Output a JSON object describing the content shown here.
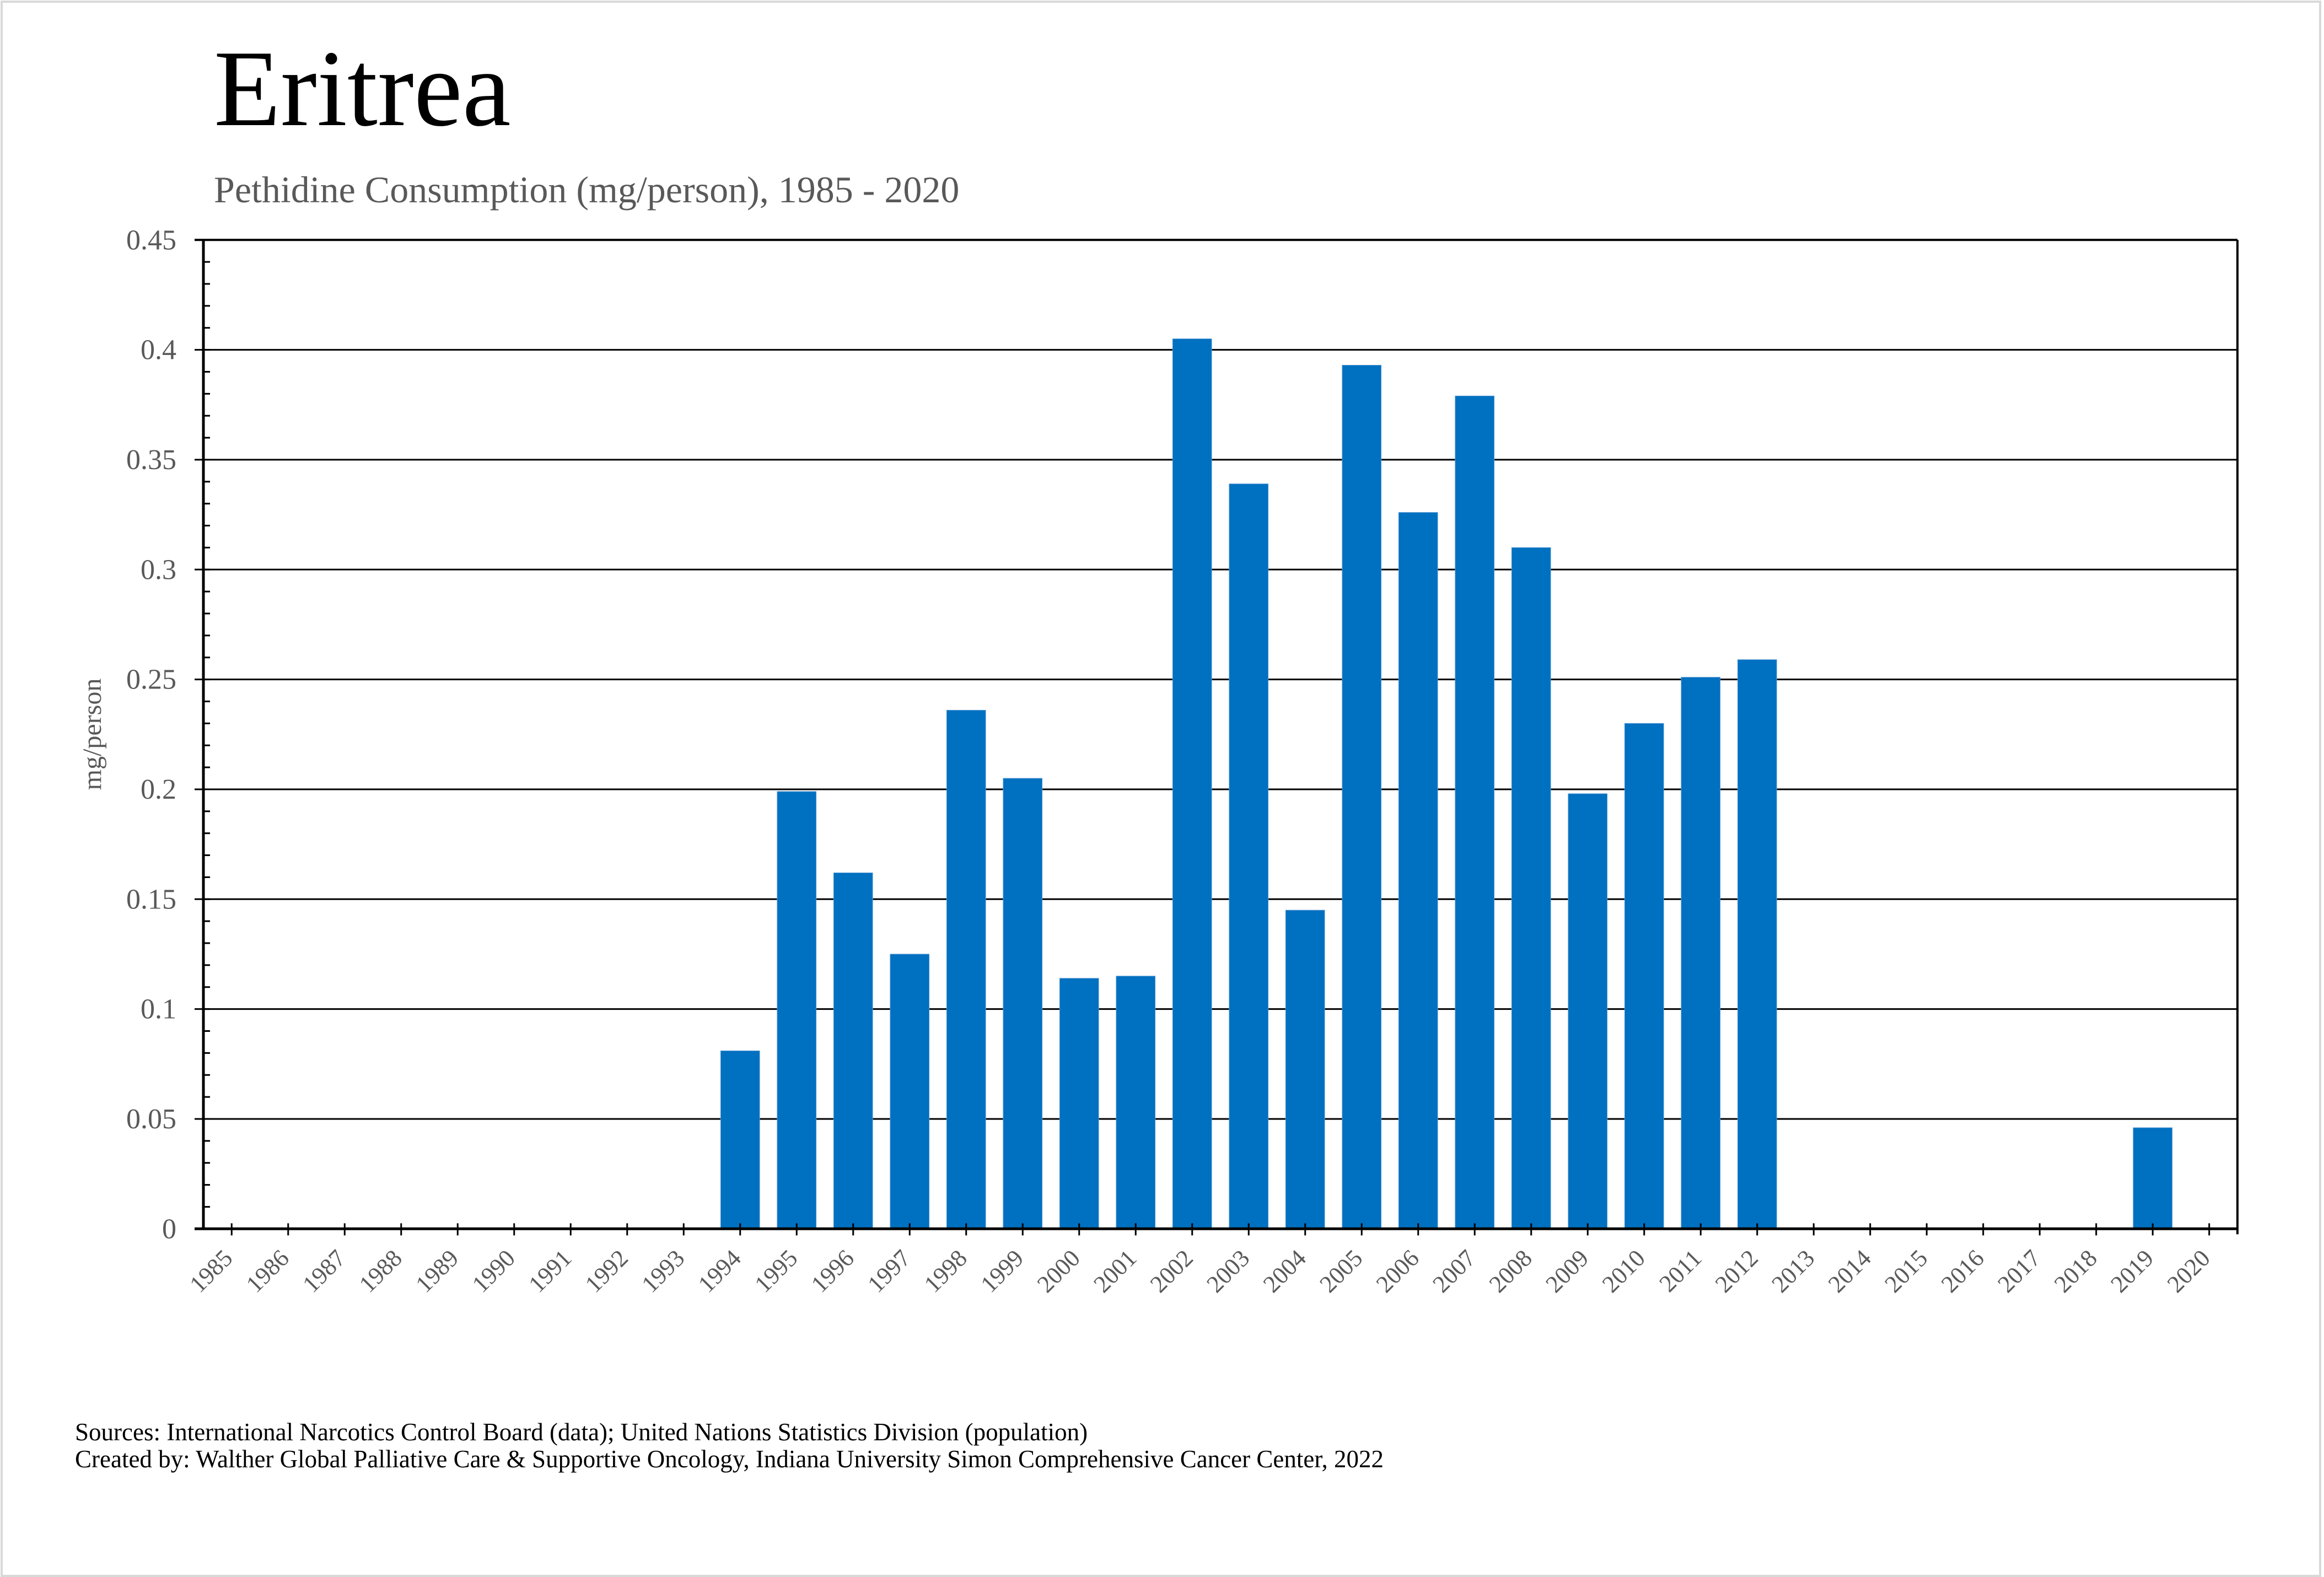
{
  "header": {
    "title": "Eritrea",
    "subtitle": "Pethidine Consumption (mg/person), 1985 - 2020"
  },
  "footer": {
    "sources": "Sources: International Narcotics Control Board (data); United Nations Statistics Division (population)",
    "created_by": "Created by: Walther Global Palliative Care & Supportive Oncology, Indiana University Simon Comprehensive Cancer Center, 2022"
  },
  "colors": {
    "bar": "#0070C0",
    "axis": "#000000",
    "gridline": "#000000",
    "tick_label": "#595959",
    "border": "#d9d9d9"
  },
  "chart_data": {
    "type": "bar",
    "title": "Eritrea",
    "subtitle": "Pethidine Consumption (mg/person), 1985 - 2020",
    "xlabel": "",
    "ylabel": "mg/person",
    "ylim": [
      0,
      0.45
    ],
    "yticks": [
      "0",
      "0.05",
      "0.1",
      "0.15",
      "0.2",
      "0.25",
      "0.3",
      "0.35",
      "0.4",
      "0.45"
    ],
    "ytick_values": [
      0,
      0.05,
      0.1,
      0.15,
      0.2,
      0.25,
      0.3,
      0.35,
      0.4,
      0.45
    ],
    "minor_ticks_per_major": 5,
    "grid": true,
    "legend": "none",
    "categories": [
      "1985",
      "1986",
      "1987",
      "1988",
      "1989",
      "1990",
      "1991",
      "1992",
      "1993",
      "1994",
      "1995",
      "1996",
      "1997",
      "1998",
      "1999",
      "2000",
      "2001",
      "2002",
      "2003",
      "2004",
      "2005",
      "2006",
      "2007",
      "2008",
      "2009",
      "2010",
      "2011",
      "2012",
      "2013",
      "2014",
      "2015",
      "2016",
      "2017",
      "2018",
      "2019",
      "2020"
    ],
    "series": [
      {
        "name": "Pethidine (mg/person)",
        "values": [
          0,
          0,
          0,
          0,
          0,
          0,
          0,
          0,
          0,
          0.081,
          0.199,
          0.162,
          0.125,
          0.236,
          0.205,
          0.114,
          0.115,
          0.405,
          0.339,
          0.145,
          0.393,
          0.326,
          0.379,
          0.31,
          0.198,
          0.23,
          0.251,
          0.259,
          0,
          0,
          0,
          0,
          0,
          0,
          0.046,
          0
        ]
      }
    ]
  }
}
